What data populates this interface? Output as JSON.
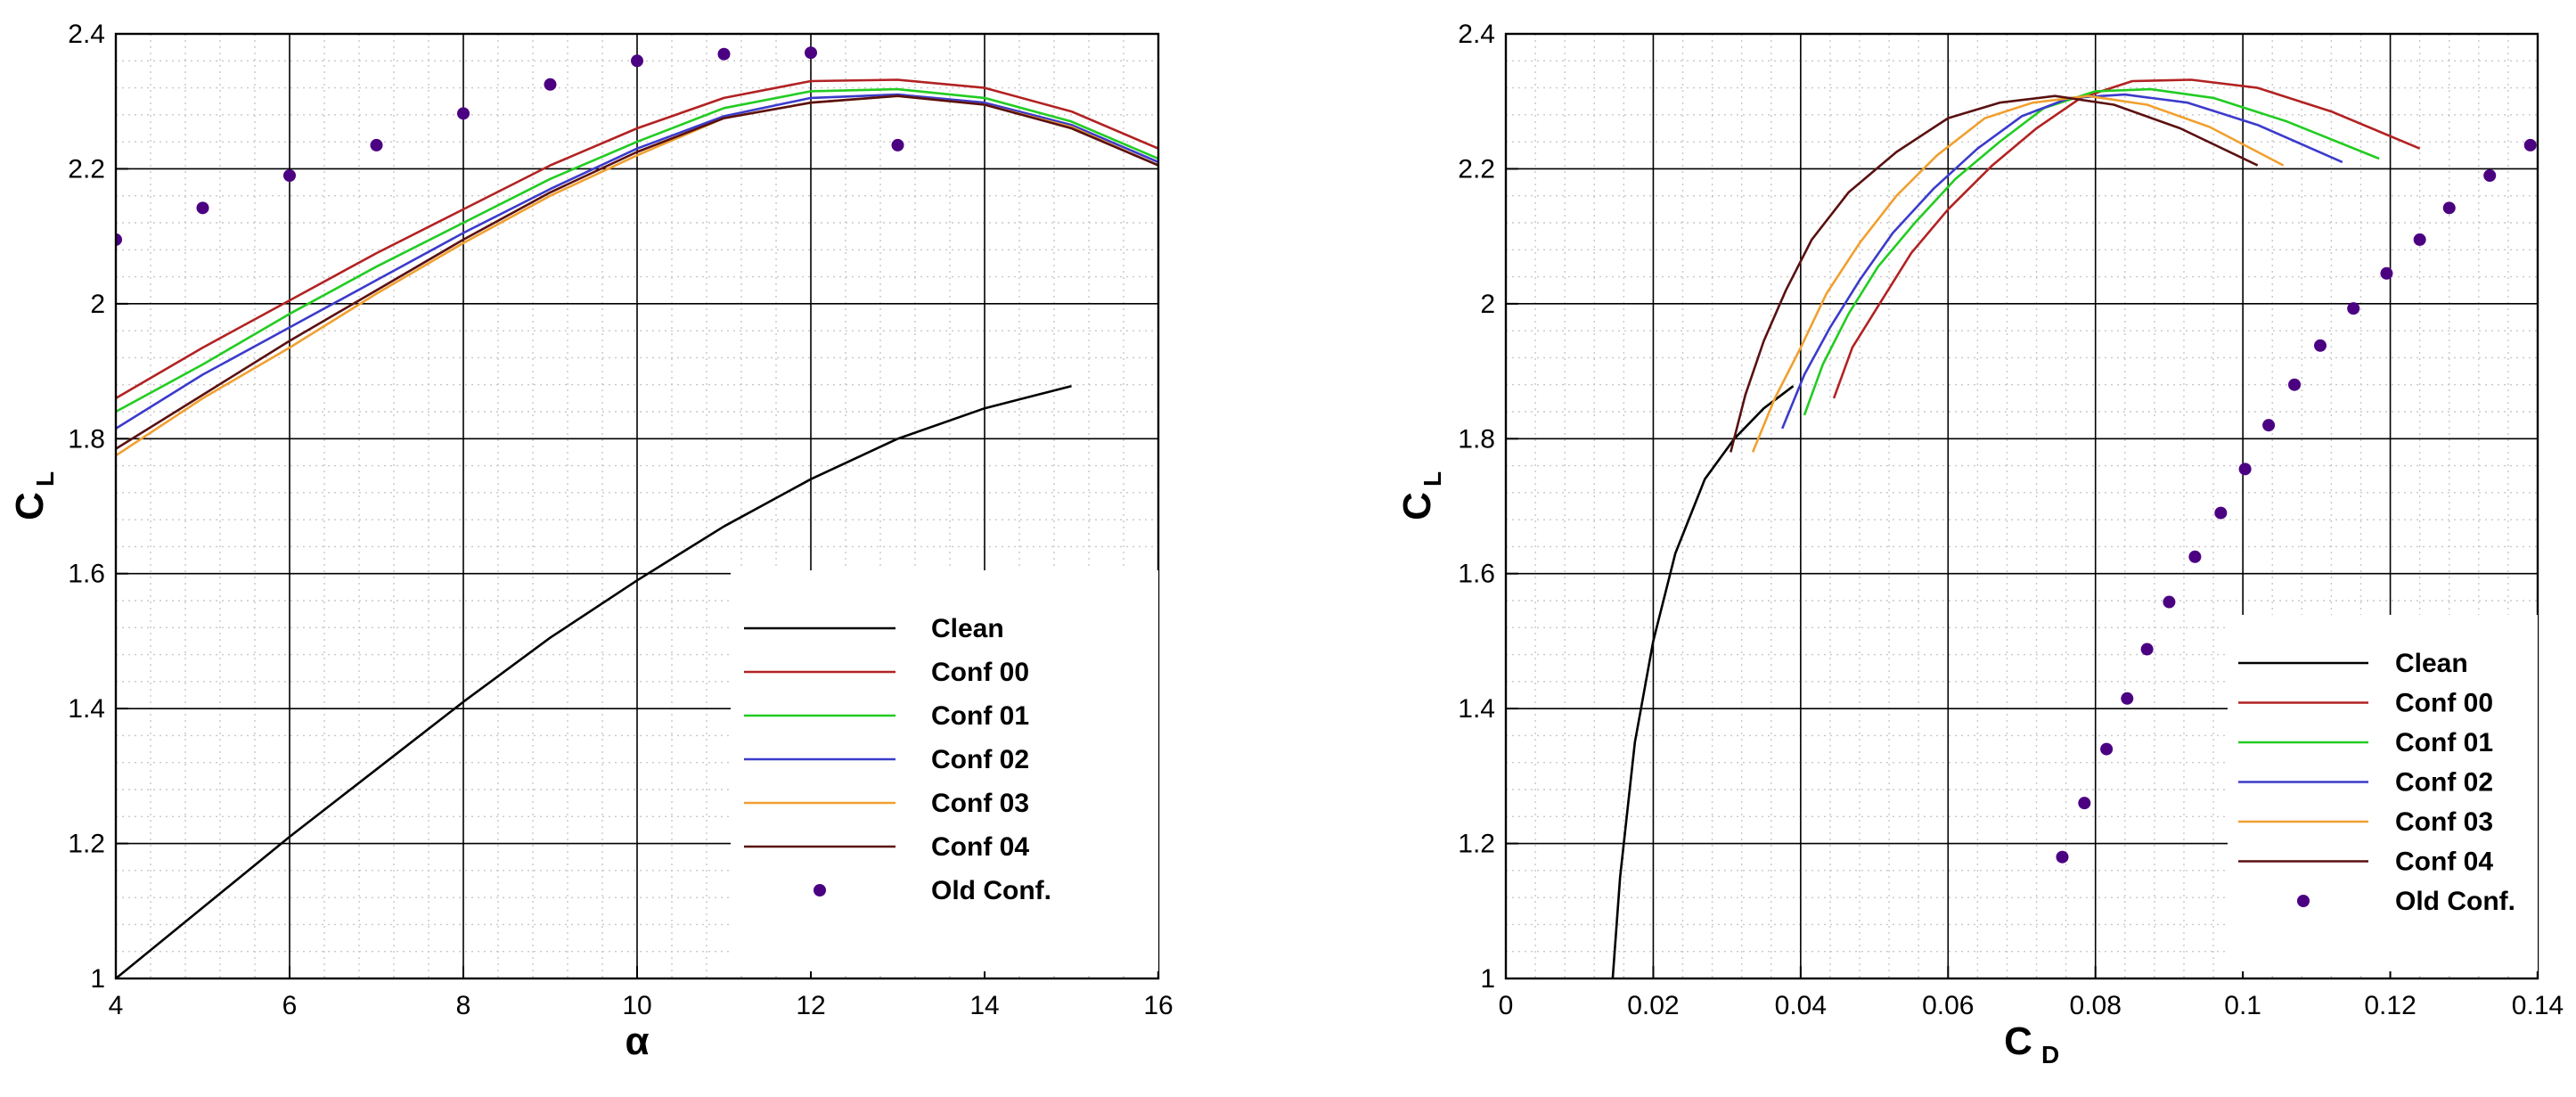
{
  "colors": {
    "Clean": "#000000",
    "Conf 00": "#b22222",
    "Conf 01": "#22cc22",
    "Conf 02": "#3b3bcc",
    "Conf 03": "#f0a030",
    "Conf 04": "#5a1010",
    "Old Conf.": "#4b0082"
  },
  "chart_data": [
    {
      "type": "line",
      "name": "CL vs alpha",
      "xlabel": "α",
      "ylabel_main": "C",
      "ylabel_sub": "L",
      "xlim": [
        4,
        16
      ],
      "ylim": [
        1,
        2.4
      ],
      "xticks": [
        4,
        6,
        8,
        10,
        12,
        14,
        16
      ],
      "yticks": [
        1,
        1.2,
        1.4,
        1.6,
        1.8,
        2,
        2.2,
        2.4
      ],
      "xtick_labels": [
        "4",
        "6",
        "8",
        "10",
        "12",
        "14",
        "16"
      ],
      "ytick_labels": [
        "1",
        "1.2",
        "1.4",
        "1.6",
        "1.8",
        "2",
        "2.2",
        "2.4"
      ],
      "grid": true,
      "legend_position": "lower-right",
      "legend": [
        "Clean",
        "Conf 00",
        "Conf 01",
        "Conf 02",
        "Conf 03",
        "Conf 04",
        "Old Conf."
      ],
      "series": [
        {
          "name": "Clean",
          "style": "line",
          "x": [
            4,
            5,
            6,
            7,
            8,
            9,
            10,
            11,
            12,
            13,
            14,
            15
          ],
          "y": [
            1.0,
            1.105,
            1.21,
            1.31,
            1.41,
            1.505,
            1.59,
            1.67,
            1.74,
            1.8,
            1.845,
            1.878
          ]
        },
        {
          "name": "Conf 00",
          "style": "line",
          "x": [
            4,
            5,
            6,
            7,
            8,
            9,
            10,
            11,
            12,
            13,
            14,
            15,
            16
          ],
          "y": [
            1.86,
            1.935,
            2.005,
            2.075,
            2.14,
            2.205,
            2.26,
            2.305,
            2.33,
            2.332,
            2.32,
            2.285,
            2.23
          ]
        },
        {
          "name": "Conf 01",
          "style": "line",
          "x": [
            4,
            5,
            6,
            7,
            8,
            9,
            10,
            11,
            12,
            13,
            14,
            15,
            16
          ],
          "y": [
            1.84,
            1.91,
            1.985,
            2.055,
            2.12,
            2.185,
            2.24,
            2.29,
            2.315,
            2.318,
            2.305,
            2.27,
            2.215
          ]
        },
        {
          "name": "Conf 02",
          "style": "line",
          "x": [
            4,
            5,
            6,
            7,
            8,
            9,
            10,
            11,
            12,
            13,
            14,
            15,
            16
          ],
          "y": [
            1.815,
            1.895,
            1.965,
            2.035,
            2.105,
            2.17,
            2.23,
            2.278,
            2.305,
            2.31,
            2.298,
            2.265,
            2.21
          ]
        },
        {
          "name": "Conf 03",
          "style": "line",
          "x": [
            4,
            5,
            6,
            7,
            8,
            9,
            10,
            11,
            12,
            13,
            14,
            15,
            16
          ],
          "y": [
            1.775,
            1.86,
            1.935,
            2.015,
            2.09,
            2.16,
            2.22,
            2.275,
            2.298,
            2.308,
            2.295,
            2.262,
            2.205
          ]
        },
        {
          "name": "Conf 04",
          "style": "line",
          "x": [
            4,
            5,
            6,
            7,
            8,
            9,
            10,
            11,
            12,
            13,
            14,
            15,
            16
          ],
          "y": [
            1.785,
            1.865,
            1.945,
            2.02,
            2.095,
            2.165,
            2.225,
            2.275,
            2.298,
            2.308,
            2.295,
            2.26,
            2.205
          ]
        },
        {
          "name": "Old Conf.",
          "style": "markers",
          "x": [
            4,
            5,
            6,
            7,
            8,
            9,
            10,
            11,
            12,
            13
          ],
          "y": [
            2.095,
            2.142,
            2.19,
            2.235,
            2.282,
            2.325,
            2.36,
            2.37,
            2.372,
            2.235
          ]
        }
      ]
    },
    {
      "type": "line",
      "name": "CL vs CD",
      "xlabel_main": "C",
      "xlabel_sub": "D",
      "ylabel_main": "C",
      "ylabel_sub": "L",
      "xlim": [
        0,
        0.14
      ],
      "ylim": [
        1,
        2.4
      ],
      "xticks": [
        0,
        0.02,
        0.04,
        0.06,
        0.08,
        0.1,
        0.12,
        0.14
      ],
      "yticks": [
        1,
        1.2,
        1.4,
        1.6,
        1.8,
        2,
        2.2,
        2.4
      ],
      "xtick_labels": [
        "0",
        "0.02",
        "0.04",
        "0.06",
        "0.08",
        "0.1",
        "0.12",
        "0.14"
      ],
      "ytick_labels": [
        "1",
        "1.2",
        "1.4",
        "1.6",
        "1.8",
        "2",
        "2.2",
        "2.4"
      ],
      "grid": true,
      "legend_position": "lower-right",
      "legend": [
        "Clean",
        "Conf 00",
        "Conf 01",
        "Conf 02",
        "Conf 03",
        "Conf 04",
        "Old Conf."
      ],
      "series": [
        {
          "name": "Clean",
          "style": "line",
          "x": [
            0.0145,
            0.0155,
            0.0175,
            0.02,
            0.023,
            0.027,
            0.031,
            0.035,
            0.039
          ],
          "y": [
            1.0,
            1.15,
            1.35,
            1.5,
            1.63,
            1.74,
            1.8,
            1.845,
            1.878
          ]
        },
        {
          "name": "Conf 00",
          "style": "line",
          "x": [
            0.0445,
            0.047,
            0.051,
            0.055,
            0.06,
            0.066,
            0.072,
            0.078,
            0.085,
            0.093,
            0.102,
            0.112,
            0.124
          ],
          "y": [
            1.86,
            1.935,
            2.005,
            2.075,
            2.14,
            2.205,
            2.26,
            2.305,
            2.33,
            2.332,
            2.32,
            2.285,
            2.23
          ]
        },
        {
          "name": "Conf 01",
          "style": "line",
          "x": [
            0.0405,
            0.043,
            0.0465,
            0.0505,
            0.0555,
            0.061,
            0.067,
            0.073,
            0.08,
            0.0875,
            0.096,
            0.106,
            0.1185
          ],
          "y": [
            1.835,
            1.91,
            1.985,
            2.055,
            2.12,
            2.185,
            2.24,
            2.29,
            2.315,
            2.318,
            2.305,
            2.27,
            2.215
          ]
        },
        {
          "name": "Conf 02",
          "style": "line",
          "x": [
            0.0375,
            0.0405,
            0.044,
            0.048,
            0.0525,
            0.058,
            0.064,
            0.07,
            0.0765,
            0.084,
            0.0925,
            0.102,
            0.1135
          ],
          "y": [
            1.815,
            1.895,
            1.965,
            2.035,
            2.105,
            2.17,
            2.23,
            2.278,
            2.305,
            2.31,
            2.298,
            2.265,
            2.21
          ]
        },
        {
          "name": "Conf 03",
          "style": "line",
          "x": [
            0.0335,
            0.0365,
            0.04,
            0.0435,
            0.048,
            0.053,
            0.0585,
            0.065,
            0.0715,
            0.079,
            0.087,
            0.0955,
            0.1055
          ],
          "y": [
            1.78,
            1.86,
            1.935,
            2.015,
            2.09,
            2.16,
            2.22,
            2.275,
            2.298,
            2.308,
            2.295,
            2.262,
            2.205
          ]
        },
        {
          "name": "Conf 04",
          "style": "line",
          "x": [
            0.0305,
            0.0325,
            0.035,
            0.038,
            0.0415,
            0.0465,
            0.053,
            0.06,
            0.067,
            0.0745,
            0.0825,
            0.0915,
            0.102
          ],
          "y": [
            1.78,
            1.865,
            1.945,
            2.02,
            2.095,
            2.165,
            2.225,
            2.275,
            2.298,
            2.308,
            2.295,
            2.26,
            2.205
          ]
        },
        {
          "name": "Old Conf.",
          "style": "markers",
          "x": [
            0.0755,
            0.0785,
            0.0815,
            0.0843,
            0.087,
            0.09,
            0.0935,
            0.097,
            0.1003,
            0.1035,
            0.107,
            0.1105,
            0.115,
            0.1195,
            0.124,
            0.128,
            0.1335,
            0.139
          ],
          "y": [
            1.18,
            1.26,
            1.34,
            1.415,
            1.488,
            1.558,
            1.625,
            1.69,
            1.755,
            1.82,
            1.88,
            1.938,
            1.993,
            2.045,
            2.095,
            2.142,
            2.19,
            2.235
          ]
        }
      ]
    }
  ]
}
